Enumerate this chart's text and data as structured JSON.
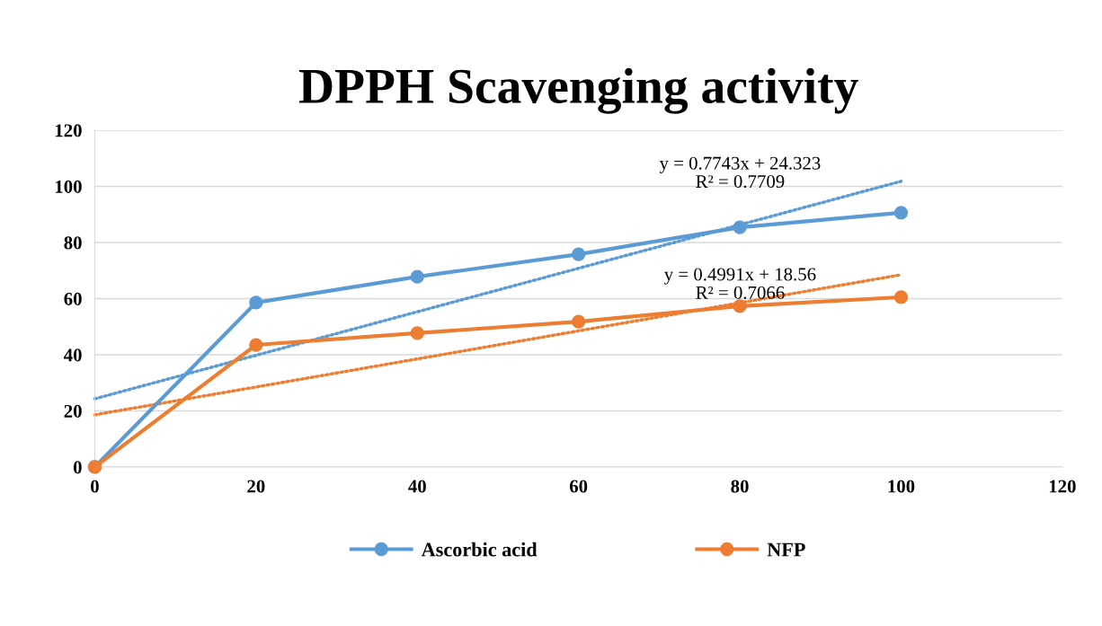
{
  "chart_data": {
    "type": "line",
    "title": "DPPH Scavenging activity",
    "x": [
      0,
      20,
      40,
      60,
      80,
      100
    ],
    "series": [
      {
        "name": "Ascorbic acid",
        "color": "#5b9bd5",
        "values": [
          0,
          58.6,
          67.8,
          75.8,
          85.4,
          90.6
        ],
        "marker": "circle",
        "line_style": "solid"
      },
      {
        "name": "NFP",
        "color": "#ed7d31",
        "values": [
          0,
          43.5,
          47.7,
          51.8,
          57.3,
          60.5
        ],
        "marker": "circle",
        "line_style": "solid"
      },
      {
        "type": "line",
        "color": "#5b9bd5",
        "values": [
          24.3,
          39.8,
          55.3,
          70.8,
          86.3,
          101.8
        ],
        "marker": "none",
        "line_style": "dotted"
      },
      {
        "type": "line",
        "color": "#ed7d31",
        "values": [
          18.6,
          28.5,
          38.5,
          48.5,
          58.5,
          68.5
        ],
        "marker": "none",
        "line_style": "dotted"
      }
    ],
    "annotations": [
      "y = 0.7743x + 24.323\nR² = 0.7709",
      "y = 0.4991x + 18.56\nR² = 0.7066"
    ],
    "xlim": [
      0,
      120
    ],
    "xticks": [
      0,
      20,
      40,
      60,
      80,
      100,
      120
    ],
    "ylim": [
      0,
      120
    ],
    "yticks": [
      0,
      20,
      40,
      60,
      80,
      100,
      120
    ],
    "grid": "y",
    "legend": "bottom"
  }
}
